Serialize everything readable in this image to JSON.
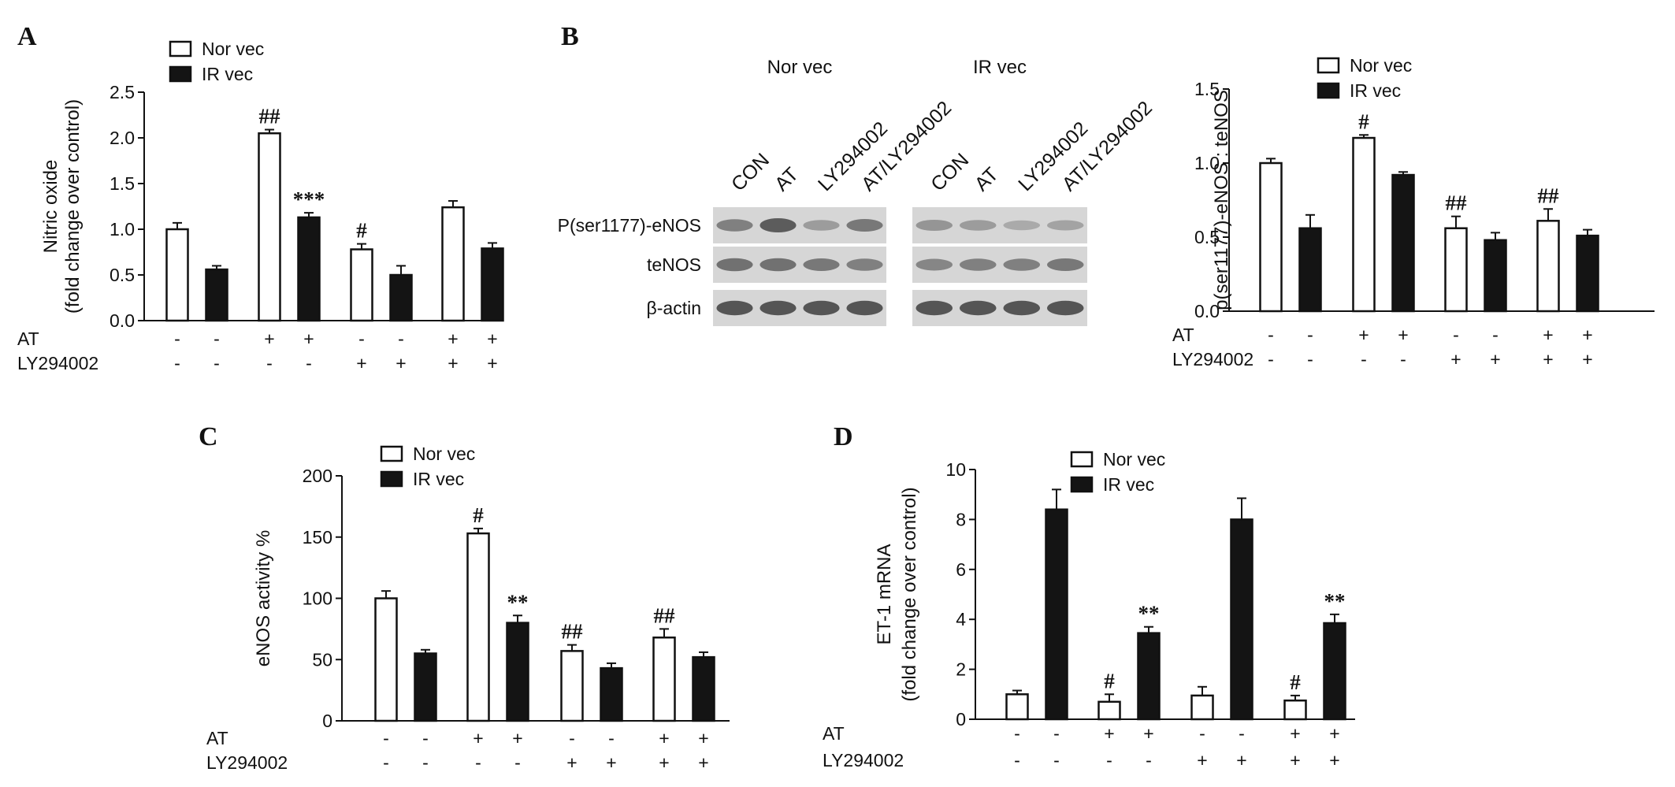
{
  "legend": {
    "nor": "Nor vec",
    "ir": "IR vec"
  },
  "colors": {
    "nor_fill": "#ffffff",
    "ir_fill": "#141414",
    "stroke": "#111111"
  },
  "conditions": {
    "labels": [
      "AT",
      "LY294002"
    ],
    "AT": [
      "-",
      "-",
      "+",
      "+",
      "-",
      "-",
      "+",
      "+"
    ],
    "LY294002": [
      "-",
      "-",
      "-",
      "-",
      "+",
      "+",
      "+",
      "+"
    ]
  },
  "panels": {
    "A": {
      "letter": "A"
    },
    "B": {
      "letter": "B"
    },
    "C": {
      "letter": "C"
    },
    "D": {
      "letter": "D"
    }
  },
  "blot": {
    "groups": [
      "Nor vec",
      "IR vec"
    ],
    "lanes": [
      "CON",
      "AT",
      "LY294002",
      "AT/LY294002"
    ],
    "rows": [
      "P(ser1177)-eNOS",
      "teNOS",
      "β-actin"
    ],
    "band_intensity": {
      "Nor vec": [
        [
          0.55,
          0.8,
          0.35,
          0.6
        ],
        [
          0.65,
          0.65,
          0.6,
          0.55
        ],
        [
          0.85,
          0.85,
          0.85,
          0.85
        ]
      ],
      "IR vec": [
        [
          0.4,
          0.35,
          0.25,
          0.3
        ],
        [
          0.5,
          0.55,
          0.55,
          0.6
        ],
        [
          0.85,
          0.85,
          0.85,
          0.85
        ]
      ]
    }
  },
  "chart_data": [
    {
      "id": "A",
      "type": "bar",
      "ylabel": [
        "Nitric oxide",
        "(fold change over control)"
      ],
      "ylim": [
        0,
        2.5
      ],
      "yticks": [
        "0.0",
        "0.5",
        "1.0",
        "1.5",
        "2.0",
        "2.5"
      ],
      "series": [
        {
          "name": "Nor vec",
          "values": [
            1.0,
            2.05,
            0.78,
            1.24
          ],
          "errors": [
            0.07,
            0.04,
            0.06,
            0.07
          ]
        },
        {
          "name": "IR vec",
          "values": [
            0.56,
            1.13,
            0.5,
            0.79
          ],
          "errors": [
            0.04,
            0.05,
            0.1,
            0.06
          ]
        }
      ],
      "annotations": [
        {
          "series": 0,
          "group": 1,
          "text": "##"
        },
        {
          "series": 1,
          "group": 1,
          "text": "***"
        },
        {
          "series": 0,
          "group": 2,
          "text": "#"
        }
      ]
    },
    {
      "id": "B",
      "type": "bar",
      "ylabel": [
        "p(ser1177)-eNOS : teNOS"
      ],
      "ylim": [
        0,
        1.5
      ],
      "yticks": [
        "0.0",
        "0.5",
        "1.0",
        "1.5"
      ],
      "series": [
        {
          "name": "Nor vec",
          "values": [
            1.0,
            1.17,
            0.56,
            0.61
          ],
          "errors": [
            0.03,
            0.02,
            0.08,
            0.08
          ]
        },
        {
          "name": "IR vec",
          "values": [
            0.56,
            0.92,
            0.48,
            0.51
          ],
          "errors": [
            0.09,
            0.02,
            0.05,
            0.04
          ]
        }
      ],
      "annotations": [
        {
          "series": 0,
          "group": 1,
          "text": "#"
        },
        {
          "series": 0,
          "group": 2,
          "text": "##"
        },
        {
          "series": 0,
          "group": 3,
          "text": "##"
        }
      ]
    },
    {
      "id": "C",
      "type": "bar",
      "ylabel": [
        "eNOS activity %"
      ],
      "ylim": [
        0,
        200
      ],
      "yticks": [
        "0",
        "50",
        "100",
        "150",
        "200"
      ],
      "series": [
        {
          "name": "Nor vec",
          "values": [
            100,
            153,
            57,
            68
          ],
          "errors": [
            6,
            4,
            5,
            7
          ]
        },
        {
          "name": "IR vec",
          "values": [
            55,
            80,
            43,
            52
          ],
          "errors": [
            3,
            6,
            4,
            4
          ]
        }
      ],
      "annotations": [
        {
          "series": 0,
          "group": 1,
          "text": "#"
        },
        {
          "series": 1,
          "group": 1,
          "text": "**"
        },
        {
          "series": 0,
          "group": 2,
          "text": "##"
        },
        {
          "series": 0,
          "group": 3,
          "text": "##"
        }
      ]
    },
    {
      "id": "D",
      "type": "bar",
      "ylabel": [
        "ET-1 mRNA",
        "(fold change over control)"
      ],
      "ylim": [
        0,
        10
      ],
      "yticks": [
        "0",
        "2",
        "4",
        "6",
        "8",
        "10"
      ],
      "series": [
        {
          "name": "Nor vec",
          "values": [
            1.0,
            0.7,
            0.95,
            0.75
          ],
          "errors": [
            0.15,
            0.3,
            0.35,
            0.2
          ]
        },
        {
          "name": "IR vec",
          "values": [
            8.4,
            3.45,
            8.0,
            3.85
          ],
          "errors": [
            0.8,
            0.25,
            0.85,
            0.35
          ]
        }
      ],
      "annotations": [
        {
          "series": 0,
          "group": 1,
          "text": "#"
        },
        {
          "series": 1,
          "group": 1,
          "text": "**"
        },
        {
          "series": 0,
          "group": 3,
          "text": "#"
        },
        {
          "series": 1,
          "group": 3,
          "text": "**"
        }
      ]
    }
  ]
}
